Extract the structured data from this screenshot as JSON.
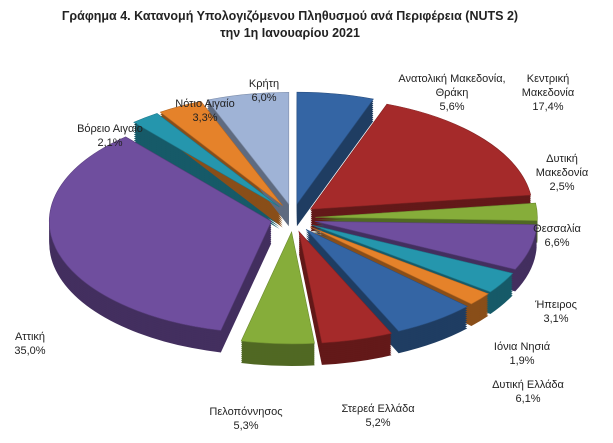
{
  "chart_data": {
    "type": "pie",
    "title": "Γράφημα 4. Κατανομή Υπολογιζόμενου Πληθυσμού ανά Περιφέρεια (NUTS 2)",
    "subtitle": "την 1η Ιανουαρίου 2021",
    "categories": [
      "Ανατολική Μακεδονία, Θράκη",
      "Κεντρική Μακεδονία",
      "Δυτική Μακεδονία",
      "Θεσσαλία",
      "Ήπειρος",
      "Ιόνια Νησιά",
      "Δυτική Ελλάδα",
      "Στερεά Ελλάδα",
      "Πελοπόννησος",
      "Αττική",
      "Βόρειο Αιγαίο",
      "Νότιο Αιγαίο",
      "Κρήτη"
    ],
    "values": [
      5.6,
      17.4,
      2.5,
      6.6,
      3.1,
      1.9,
      6.1,
      5.2,
      5.3,
      35.0,
      2.1,
      3.3,
      6.0
    ],
    "value_labels": [
      "5,6%",
      "17,4%",
      "2,5%",
      "6,6%",
      "3,1%",
      "1,9%",
      "6,1%",
      "5,2%",
      "5,3%",
      "35,0%",
      "2,1%",
      "3,3%",
      "6,0%"
    ],
    "colors": [
      "#3465a4",
      "#a52a2a",
      "#86ad3a",
      "#6f4e9e",
      "#2596ad",
      "#e5822a",
      "#3465a4",
      "#a52a2a",
      "#86ad3a",
      "#6f4e9e",
      "#2596ad",
      "#e5822a",
      "#9fb3d6"
    ]
  }
}
